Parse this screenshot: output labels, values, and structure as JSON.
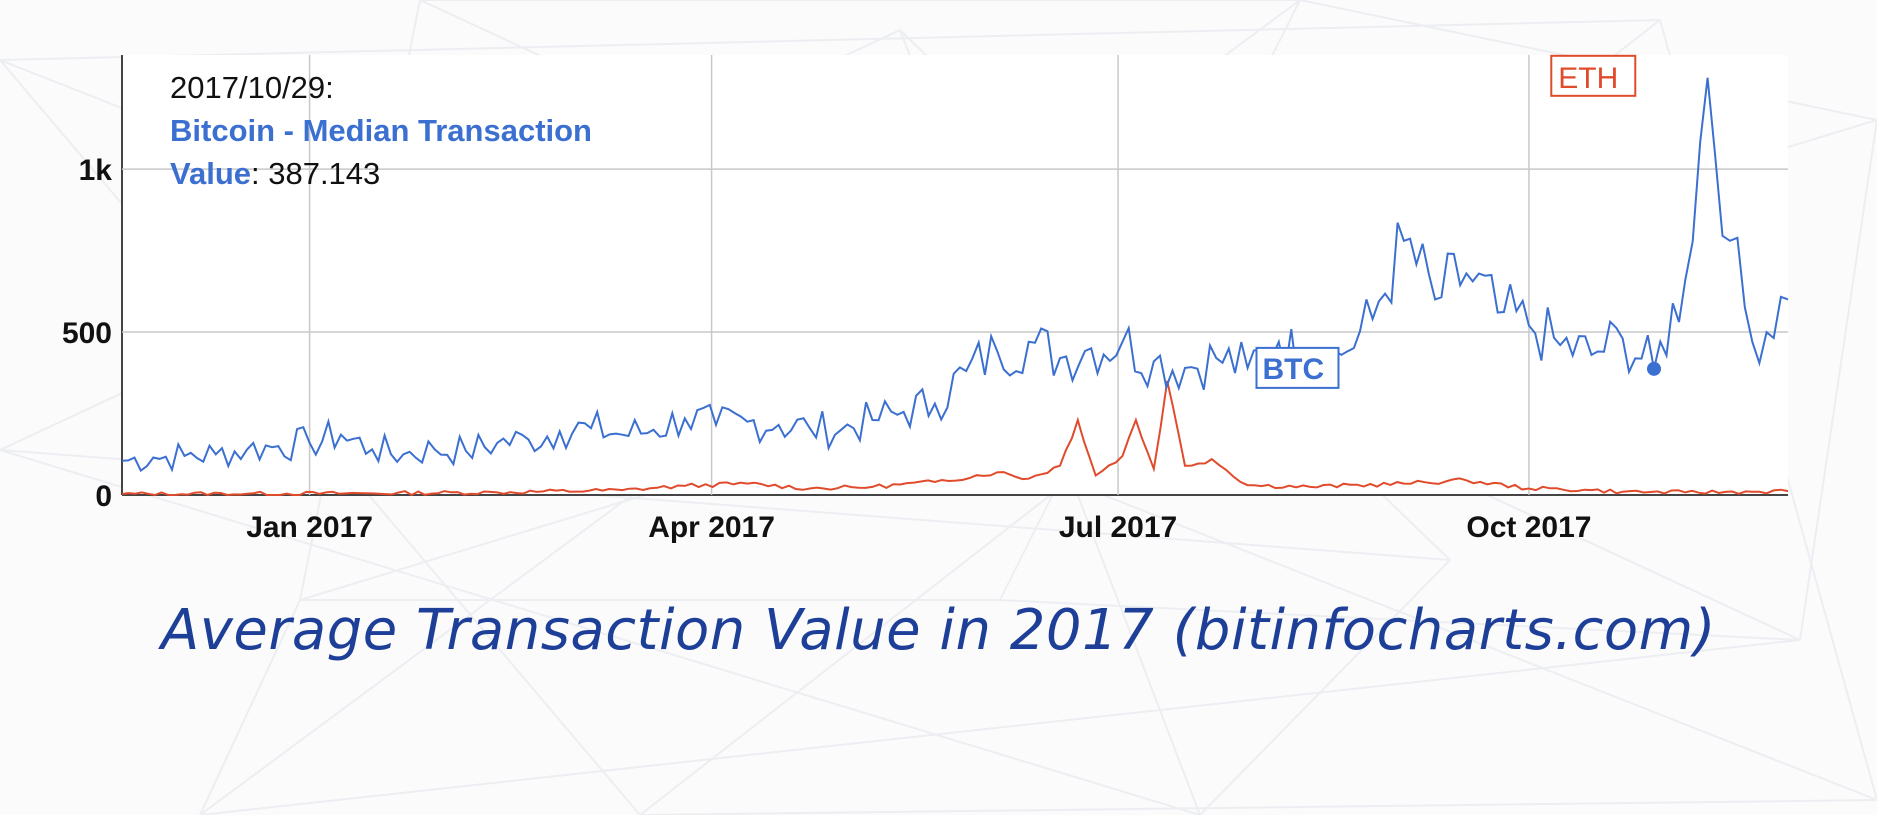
{
  "caption": "Average Transaction Value in 2017 (bitinfocharts.com)",
  "tooltip": {
    "date": "2017/10/29:",
    "series_name": "Bitcoin - Median Transaction Value",
    "series_name_line1": "Bitcoin - Median Transaction",
    "series_name_line2": "Value",
    "value": ": 387.143"
  },
  "chart_data": {
    "type": "line",
    "x_ticks": [
      "Jan 2017",
      "Apr 2017",
      "Jul 2017",
      "Oct 2017"
    ],
    "y_ticks": [
      "0",
      "500",
      "1k"
    ],
    "ylim": [
      0,
      1350
    ],
    "xlim": [
      "2016-11-20",
      "2017-11-28"
    ],
    "grid": true,
    "colors": {
      "btc": "#3b6fd0",
      "eth": "#e04b2c",
      "caption": "#1d3f98"
    },
    "series": [
      {
        "name": "BTC",
        "key": "btc",
        "points": [
          [
            "2016-11-20",
            105
          ],
          [
            "2016-11-27",
            115
          ],
          [
            "2016-12-04",
            120
          ],
          [
            "2016-12-11",
            125
          ],
          [
            "2016-12-18",
            140
          ],
          [
            "2016-12-25",
            150
          ],
          [
            "2017-01-01",
            160
          ],
          [
            "2017-01-08",
            185
          ],
          [
            "2017-01-15",
            140
          ],
          [
            "2017-01-22",
            125
          ],
          [
            "2017-01-29",
            140
          ],
          [
            "2017-02-05",
            135
          ],
          [
            "2017-02-12",
            160
          ],
          [
            "2017-02-19",
            170
          ],
          [
            "2017-02-26",
            195
          ],
          [
            "2017-03-05",
            205
          ],
          [
            "2017-03-12",
            185
          ],
          [
            "2017-03-19",
            200
          ],
          [
            "2017-03-26",
            235
          ],
          [
            "2017-04-02",
            215
          ],
          [
            "2017-04-09",
            225
          ],
          [
            "2017-04-16",
            215
          ],
          [
            "2017-04-23",
            205
          ],
          [
            "2017-04-30",
            200
          ],
          [
            "2017-05-07",
            230
          ],
          [
            "2017-05-14",
            255
          ],
          [
            "2017-05-21",
            280
          ],
          [
            "2017-05-28",
            380
          ],
          [
            "2017-06-04",
            440
          ],
          [
            "2017-06-11",
            470
          ],
          [
            "2017-06-18",
            420
          ],
          [
            "2017-06-25",
            450
          ],
          [
            "2017-07-02",
            470
          ],
          [
            "2017-07-09",
            410
          ],
          [
            "2017-07-16",
            390
          ],
          [
            "2017-07-23",
            420
          ],
          [
            "2017-07-30",
            390
          ],
          [
            "2017-08-06",
            470
          ],
          [
            "2017-08-13",
            395
          ],
          [
            "2017-08-20",
            430
          ],
          [
            "2017-08-27",
            540
          ],
          [
            "2017-09-03",
            780
          ],
          [
            "2017-09-10",
            600
          ],
          [
            "2017-09-17",
            680
          ],
          [
            "2017-09-24",
            560
          ],
          [
            "2017-10-01",
            520
          ],
          [
            "2017-10-08",
            460
          ],
          [
            "2017-10-15",
            430
          ],
          [
            "2017-10-22",
            480
          ],
          [
            "2017-10-29",
            387.143
          ],
          [
            "2017-11-05",
            660
          ],
          [
            "2017-11-10",
            1280
          ],
          [
            "2017-11-15",
            780
          ],
          [
            "2017-11-20",
            470
          ],
          [
            "2017-11-28",
            600
          ]
        ]
      },
      {
        "name": "ETH",
        "key": "eth",
        "points": [
          [
            "2016-11-20",
            3
          ],
          [
            "2016-12-18",
            4
          ],
          [
            "2017-01-15",
            5
          ],
          [
            "2017-02-12",
            8
          ],
          [
            "2017-03-12",
            15
          ],
          [
            "2017-03-26",
            28
          ],
          [
            "2017-04-09",
            35
          ],
          [
            "2017-04-23",
            20
          ],
          [
            "2017-05-07",
            25
          ],
          [
            "2017-05-21",
            40
          ],
          [
            "2017-06-04",
            70
          ],
          [
            "2017-06-11",
            50
          ],
          [
            "2017-06-18",
            90
          ],
          [
            "2017-06-22",
            230
          ],
          [
            "2017-06-26",
            60
          ],
          [
            "2017-07-02",
            120
          ],
          [
            "2017-07-05",
            230
          ],
          [
            "2017-07-09",
            80
          ],
          [
            "2017-07-12",
            350
          ],
          [
            "2017-07-16",
            90
          ],
          [
            "2017-07-22",
            110
          ],
          [
            "2017-07-30",
            30
          ],
          [
            "2017-08-13",
            25
          ],
          [
            "2017-09-03",
            35
          ],
          [
            "2017-09-17",
            45
          ],
          [
            "2017-10-01",
            20
          ],
          [
            "2017-10-15",
            15
          ],
          [
            "2017-10-22",
            10
          ],
          [
            "2017-11-05",
            8
          ],
          [
            "2017-11-20",
            10
          ],
          [
            "2017-11-28",
            12
          ]
        ]
      }
    ],
    "series_labels": [
      "BTC",
      "ETH"
    ],
    "highlight_point": {
      "series": "BTC",
      "x": "2017-10-29",
      "y": 387.143
    }
  }
}
